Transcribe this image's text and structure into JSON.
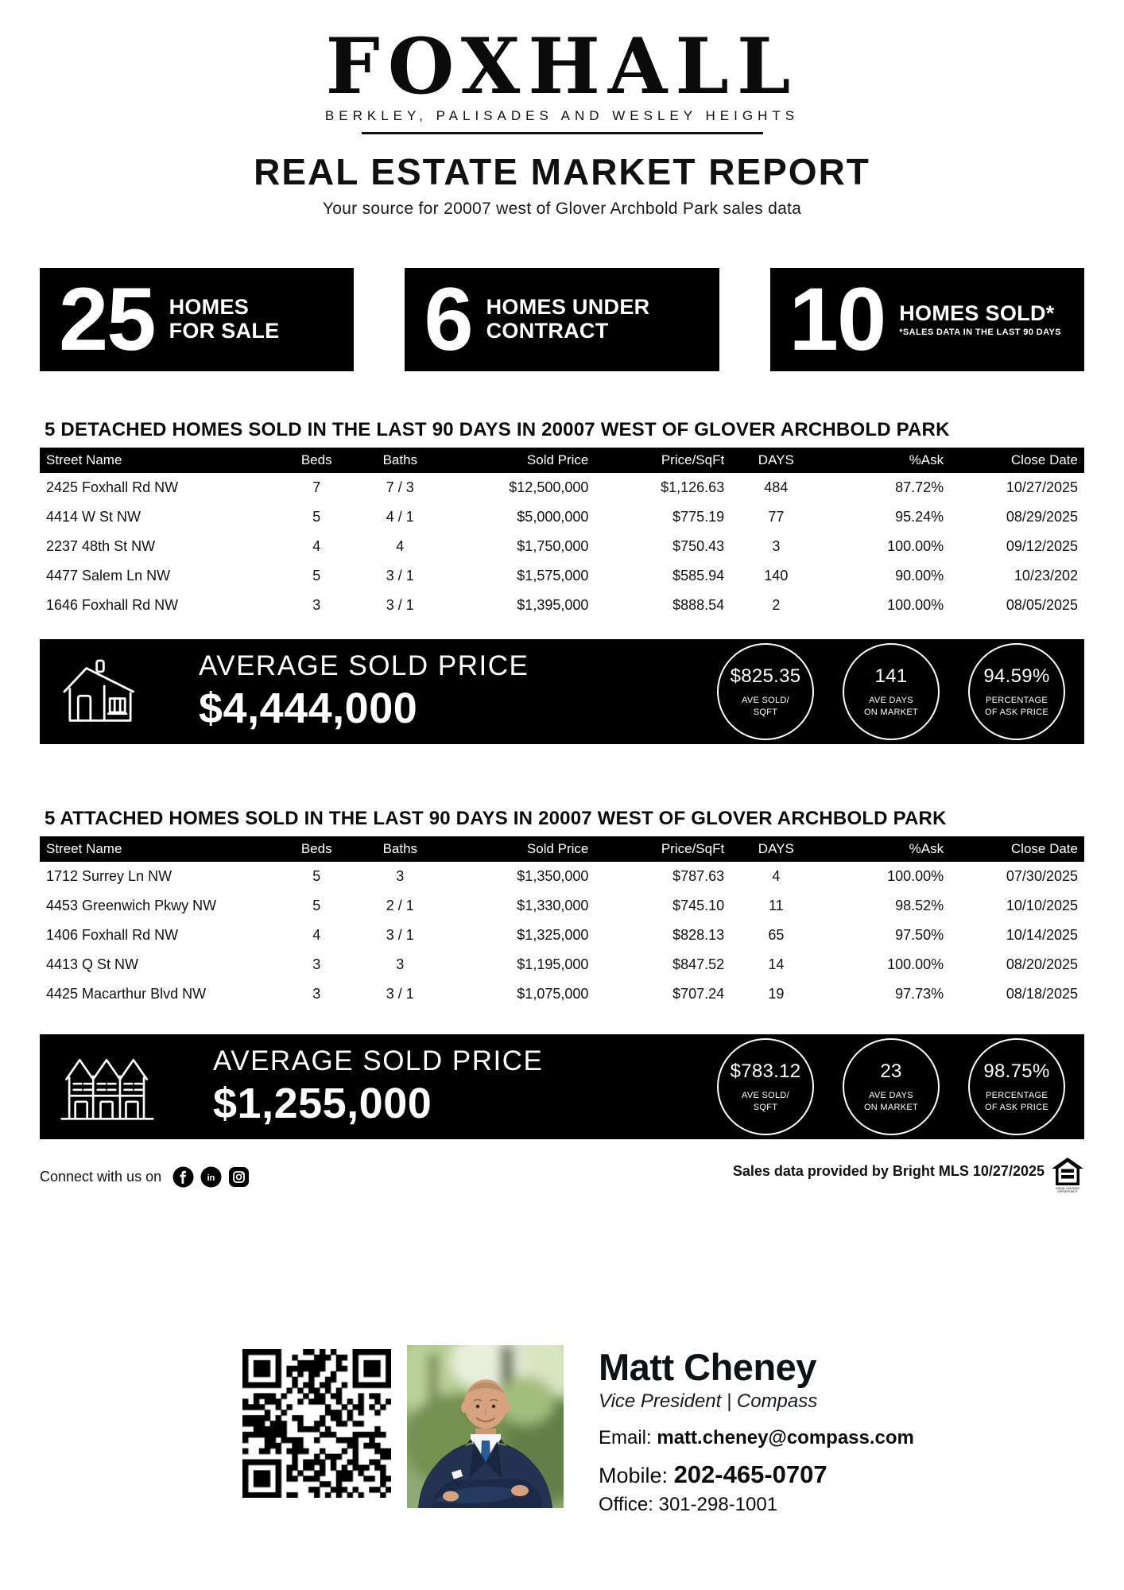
{
  "header": {
    "logo": "FOXHALL",
    "neighborhoods": "BERKLEY, PALISADES AND WESLEY HEIGHTS",
    "title": "REAL ESTATE MARKET REPORT",
    "tagline": "Your source for 20007 west of Glover Archbold Park sales data"
  },
  "stats": [
    {
      "value": "25",
      "line1": "HOMES",
      "line2": "FOR SALE"
    },
    {
      "value": "6",
      "line1": "HOMES UNDER",
      "line2": "CONTRACT"
    },
    {
      "value": "10",
      "line1": "HOMES SOLD*",
      "footnote": "*SALES DATA IN THE LAST 90 DAYS"
    }
  ],
  "detached": {
    "title": "5 DETACHED HOMES SOLD IN THE LAST 90 DAYS IN 20007 WEST OF GLOVER ARCHBOLD PARK",
    "columns": [
      "Street Name",
      "Beds",
      "Baths",
      "Sold Price",
      "Price/SqFt",
      "DAYS",
      "%Ask",
      "Close Date"
    ],
    "rows": [
      [
        "2425 Foxhall Rd NW",
        "7",
        "7 / 3",
        "$12,500,000",
        "$1,126.63",
        "484",
        "87.72%",
        "10/27/2025"
      ],
      [
        "4414 W St NW",
        "5",
        "4 / 1",
        "$5,000,000",
        "$775.19",
        "77",
        "95.24%",
        "08/29/2025"
      ],
      [
        "2237 48th St NW",
        "4",
        "4",
        "$1,750,000",
        "$750.43",
        "3",
        "100.00%",
        "09/12/2025"
      ],
      [
        "4477 Salem Ln NW",
        "5",
        "3 / 1",
        "$1,575,000",
        "$585.94",
        "140",
        "90.00%",
        "10/23/202"
      ],
      [
        "1646 Foxhall Rd NW",
        "3",
        "3 / 1",
        "$1,395,000",
        "$888.54",
        "2",
        "100.00%",
        "08/05/2025"
      ]
    ],
    "summary": {
      "label": "AVERAGE SOLD PRICE",
      "price": "$4,444,000",
      "circles": [
        {
          "value": "$825.35",
          "line1": "AVE SOLD/",
          "line2": "SQFT"
        },
        {
          "value": "141",
          "line1": "AVE DAYS",
          "line2": "ON MARKET"
        },
        {
          "value": "94.59%",
          "line1": "PERCENTAGE",
          "line2": "OF ASK PRICE"
        }
      ]
    }
  },
  "attached": {
    "title": "5 ATTACHED HOMES SOLD IN THE LAST 90 DAYS IN 20007 WEST OF GLOVER ARCHBOLD PARK",
    "columns": [
      "Street Name",
      "Beds",
      "Baths",
      "Sold Price",
      "Price/SqFt",
      "DAYS",
      "%Ask",
      "Close Date"
    ],
    "rows": [
      [
        "1712 Surrey Ln NW",
        "5",
        "3",
        "$1,350,000",
        "$787.63",
        "4",
        "100.00%",
        "07/30/2025"
      ],
      [
        "4453 Greenwich Pkwy NW",
        "5",
        "2 / 1",
        "$1,330,000",
        "$745.10",
        "11",
        "98.52%",
        "10/10/2025"
      ],
      [
        "1406 Foxhall Rd NW",
        "4",
        "3 / 1",
        "$1,325,000",
        "$828.13",
        "65",
        "97.50%",
        "10/14/2025"
      ],
      [
        "4413 Q St NW",
        "3",
        "3",
        "$1,195,000",
        "$847.52",
        "14",
        "100.00%",
        "08/20/2025"
      ],
      [
        "4425 Macarthur Blvd NW",
        "3",
        "3 / 1",
        "$1,075,000",
        "$707.24",
        "19",
        "97.73%",
        "08/18/2025"
      ]
    ],
    "summary": {
      "label": "AVERAGE SOLD PRICE",
      "price": "$1,255,000",
      "circles": [
        {
          "value": "$783.12",
          "line1": "AVE SOLD/",
          "line2": "SQFT"
        },
        {
          "value": "23",
          "line1": "AVE DAYS",
          "line2": "ON MARKET"
        },
        {
          "value": "98.75%",
          "line1": "PERCENTAGE",
          "line2": "OF ASK PRICE"
        }
      ]
    }
  },
  "footer": {
    "connect": "Connect with us on",
    "source": "Sales data provided by Bright MLS 10/27/2025",
    "eho_line1": "EQUAL HOUSING",
    "eho_line2": "OPPORTUNITY"
  },
  "agent": {
    "name": "Matt Cheney",
    "title": "Vice President | Compass",
    "email_label": "Email:",
    "email": "matt.cheney@compass.com",
    "mobile_label": "Mobile:",
    "mobile": "202-465-0707",
    "office_label": "Office:",
    "office": "301-298-1001"
  },
  "colors": {
    "accent": "#000000",
    "background": "#ffffff",
    "suit_navy": "#1e2c49",
    "tie_blue": "#2a5a9c"
  }
}
